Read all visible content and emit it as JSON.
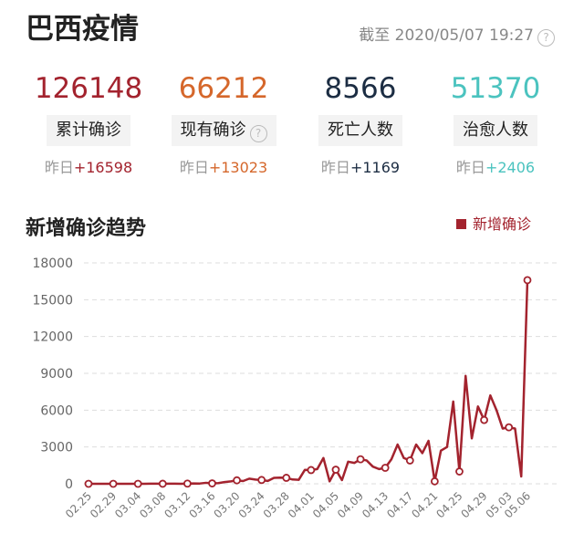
{
  "header": {
    "title": "巴西疫情",
    "updated": "截至 2020/05/07 19:27"
  },
  "stats": [
    {
      "value": 126148,
      "label": "累计确诊",
      "delta_label": "昨日",
      "delta": "+16598",
      "color": "#a3232e"
    },
    {
      "value": 66212,
      "label": "现有确诊",
      "delta_label": "昨日",
      "delta": "+13023",
      "color": "#d5672b"
    },
    {
      "value": 8566,
      "label": "死亡人数",
      "delta_label": "昨日",
      "delta": "+1169",
      "color": "#1c2d43"
    },
    {
      "value": 51370,
      "label": "治愈人数",
      "delta_label": "昨日",
      "delta": "+2406",
      "color": "#4bc3bf"
    }
  ],
  "chart_data": {
    "type": "line",
    "title": "新增确诊趋势",
    "legend": "top-right",
    "grid": true,
    "x": [
      "02.25",
      null,
      null,
      null,
      "02.29",
      null,
      null,
      null,
      "03.04",
      null,
      null,
      null,
      "03.08",
      null,
      null,
      null,
      "03.12",
      null,
      null,
      null,
      "03.16",
      null,
      null,
      null,
      "03.20",
      null,
      null,
      null,
      "03.24",
      null,
      null,
      null,
      "03.28",
      null,
      null,
      null,
      "04.01",
      null,
      null,
      null,
      "04.05",
      null,
      null,
      null,
      "04.09",
      null,
      null,
      null,
      "04.13",
      null,
      null,
      null,
      "04.17",
      null,
      null,
      null,
      "04.21",
      null,
      null,
      null,
      "04.25",
      null,
      null,
      null,
      "04.29",
      null,
      null,
      null,
      "05.03",
      null,
      null,
      "05.06"
    ],
    "series": [
      {
        "name": "新增确诊",
        "color": "#a3232e",
        "values": [
          0,
          1,
          0,
          0,
          1,
          0,
          0,
          1,
          1,
          0,
          5,
          5,
          4,
          6,
          6,
          4,
          18,
          27,
          23,
          79,
          34,
          57,
          137,
          193,
          283,
          224,
          418,
          345,
          310,
          232,
          482,
          502,
          487,
          352,
          323,
          1138,
          1119,
          1200,
          2100,
          200,
          1150,
          300,
          1800,
          1700,
          2000,
          1900,
          1400,
          1200,
          1300,
          2000,
          3200,
          2100,
          1900,
          3200,
          2500,
          3500,
          200,
          2700,
          3000,
          6700,
          1000,
          8800,
          3700,
          6300,
          5200,
          7200,
          6000,
          4500,
          4600,
          4500,
          600,
          16598
        ]
      }
    ],
    "ylim": [
      0,
      18000
    ],
    "yticks": [
      0,
      3000,
      6000,
      9000,
      12000,
      15000,
      18000
    ]
  }
}
